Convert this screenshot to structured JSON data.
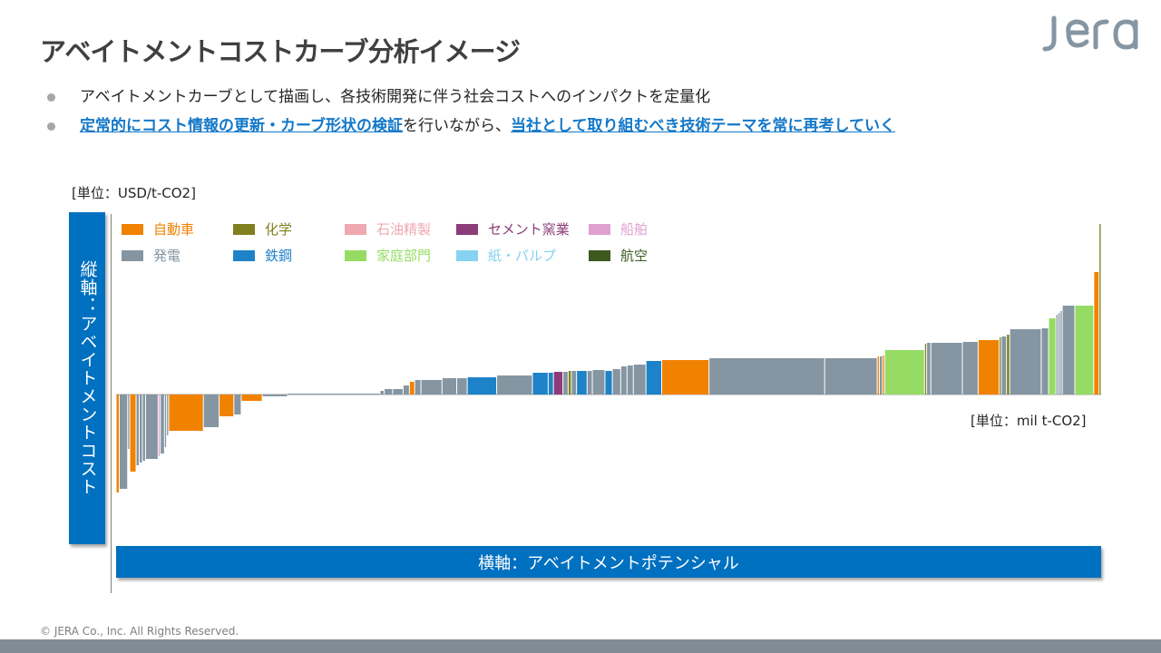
{
  "slide": {
    "title": "アベイトメントコストカーブ分析イメージ",
    "logo_text": "jera",
    "copyright": "© JERA Co., Inc. All Rights Reserved."
  },
  "bullets": [
    {
      "parts": [
        {
          "text": "アベイトメントカーブとして描画し、各技術開発に伴う社会コストへのインパクトを定量化",
          "emphasis": false
        }
      ]
    },
    {
      "parts": [
        {
          "text": "定常的にコスト情報の更新・カーブ形状の検証",
          "emphasis": true
        },
        {
          "text": "を行いながら、",
          "emphasis": false
        },
        {
          "text": "当社として取り組むべき技術テーマを常に再考していく",
          "emphasis": true
        }
      ]
    }
  ],
  "chart_data": {
    "type": "bar",
    "subtype": "marginal abatement cost curve (variable-width bars)",
    "title": "",
    "xlabel": "横軸：アベイトメントポテンシャル",
    "ylabel": "縦軸：アベイトメントコスト",
    "x_unit": "[単位：mil t-CO2]",
    "y_unit": "[単位：USD/t-CO2]",
    "axis_values_shown": false,
    "grid": false,
    "legend_position": "top-left",
    "sectors": [
      {
        "name": "自動車",
        "color": "#f08200"
      },
      {
        "name": "化学",
        "color": "#808020"
      },
      {
        "name": "石油精製",
        "color": "#f0a8b0"
      },
      {
        "name": "セメント窯業",
        "color": "#8c3c78"
      },
      {
        "name": "船舶",
        "color": "#e0a0d0"
      },
      {
        "name": "発電",
        "color": "#8596a2"
      },
      {
        "name": "鉄鋼",
        "color": "#1e82c8"
      },
      {
        "name": "家庭部門",
        "color": "#96dc64"
      },
      {
        "name": "紙・パルプ",
        "color": "#87d2f0"
      },
      {
        "name": "航空",
        "color": "#3c5a20"
      }
    ],
    "bars_note": "Relative values only (no axis ticks shown). width = abatement potential, cost = abatement cost; order left to right.",
    "bars": [
      {
        "sector": "自動車",
        "width": 3,
        "cost": -108
      },
      {
        "sector": "発電",
        "width": 8,
        "cost": -104
      },
      {
        "sector": "発電",
        "width": 2,
        "cost": -60
      },
      {
        "sector": "自動車",
        "width": 6,
        "cost": -85
      },
      {
        "sector": "発電",
        "width": 3,
        "cost": -78
      },
      {
        "sector": "発電",
        "width": 3,
        "cost": -75
      },
      {
        "sector": "発電",
        "width": 3,
        "cost": -73
      },
      {
        "sector": "発電",
        "width": 12,
        "cost": -71
      },
      {
        "sector": "船舶",
        "width": 2,
        "cost": -68
      },
      {
        "sector": "発電",
        "width": 4,
        "cost": -65
      },
      {
        "sector": "発電",
        "width": 2,
        "cost": -58
      },
      {
        "sector": "発電",
        "width": 2,
        "cost": -45
      },
      {
        "sector": "自動車",
        "width": 33,
        "cost": -40
      },
      {
        "sector": "発電",
        "width": 15,
        "cost": -36
      },
      {
        "sector": "自動車",
        "width": 14,
        "cost": -24
      },
      {
        "sector": "発電",
        "width": 7,
        "cost": -22
      },
      {
        "sector": "自動車",
        "width": 20,
        "cost": -7
      },
      {
        "sector": "発電",
        "width": 24,
        "cost": -2
      },
      {
        "sector": "発電",
        "width": 88,
        "cost": 0
      },
      {
        "sector": "発電",
        "width": 4,
        "cost": 4
      },
      {
        "sector": "発電",
        "width": 8,
        "cost": 6
      },
      {
        "sector": "発電",
        "width": 10,
        "cost": 6
      },
      {
        "sector": "発電",
        "width": 6,
        "cost": 10
      },
      {
        "sector": "自動車",
        "width": 5,
        "cost": 14
      },
      {
        "sector": "発電",
        "width": 6,
        "cost": 16
      },
      {
        "sector": "発電",
        "width": 20,
        "cost": 16
      },
      {
        "sector": "発電",
        "width": 14,
        "cost": 18
      },
      {
        "sector": "発電",
        "width": 10,
        "cost": 18
      },
      {
        "sector": "鉄鋼",
        "width": 28,
        "cost": 19
      },
      {
        "sector": "発電",
        "width": 34,
        "cost": 21
      },
      {
        "sector": "鉄鋼",
        "width": 15,
        "cost": 24
      },
      {
        "sector": "鉄鋼",
        "width": 5,
        "cost": 24
      },
      {
        "sector": "セメント窯業",
        "width": 9,
        "cost": 25
      },
      {
        "sector": "発電",
        "width": 5,
        "cost": 25
      },
      {
        "sector": "化学",
        "width": 3,
        "cost": 26
      },
      {
        "sector": "発電",
        "width": 5,
        "cost": 26
      },
      {
        "sector": "鉄鋼",
        "width": 10,
        "cost": 26
      },
      {
        "sector": "発電",
        "width": 5,
        "cost": 26
      },
      {
        "sector": "発電",
        "width": 12,
        "cost": 27
      },
      {
        "sector": "鉄鋼",
        "width": 7,
        "cost": 26
      },
      {
        "sector": "発電",
        "width": 8,
        "cost": 28
      },
      {
        "sector": "発電",
        "width": 6,
        "cost": 31
      },
      {
        "sector": "発電",
        "width": 6,
        "cost": 32
      },
      {
        "sector": "発電",
        "width": 12,
        "cost": 33
      },
      {
        "sector": "鉄鋼",
        "width": 15,
        "cost": 37
      },
      {
        "sector": "自動車",
        "width": 45,
        "cost": 38
      },
      {
        "sector": "発電",
        "width": 110,
        "cost": 40
      },
      {
        "sector": "発電",
        "width": 50,
        "cost": 40
      },
      {
        "sector": "自動車",
        "width": 2,
        "cost": 42
      },
      {
        "sector": "発電",
        "width": 3,
        "cost": 42
      },
      {
        "sector": "自動車",
        "width": 2,
        "cost": 43
      },
      {
        "sector": "家庭部門",
        "width": 38,
        "cost": 49
      },
      {
        "sector": "化学",
        "width": 2,
        "cost": 56
      },
      {
        "sector": "発電",
        "width": 4,
        "cost": 57
      },
      {
        "sector": "発電",
        "width": 30,
        "cost": 57
      },
      {
        "sector": "発電",
        "width": 15,
        "cost": 58
      },
      {
        "sector": "自動車",
        "width": 20,
        "cost": 60
      },
      {
        "sector": "化学",
        "width": 2,
        "cost": 63
      },
      {
        "sector": "発電",
        "width": 5,
        "cost": 64
      },
      {
        "sector": "化学",
        "width": 3,
        "cost": 66
      },
      {
        "sector": "発電",
        "width": 30,
        "cost": 72
      },
      {
        "sector": "発電",
        "width": 7,
        "cost": 73
      },
      {
        "sector": "家庭部門",
        "width": 7,
        "cost": 84
      },
      {
        "sector": "発電",
        "width": 2,
        "cost": 88
      },
      {
        "sector": "発電",
        "width": 2,
        "cost": 90
      },
      {
        "sector": "発電",
        "width": 2,
        "cost": 92
      },
      {
        "sector": "発電",
        "width": 12,
        "cost": 98
      },
      {
        "sector": "家庭部門",
        "width": 18,
        "cost": 98
      },
      {
        "sector": "自動車",
        "width": 5,
        "cost": 135
      },
      {
        "sector": "化学",
        "width": 2,
        "cost": 188
      }
    ]
  }
}
